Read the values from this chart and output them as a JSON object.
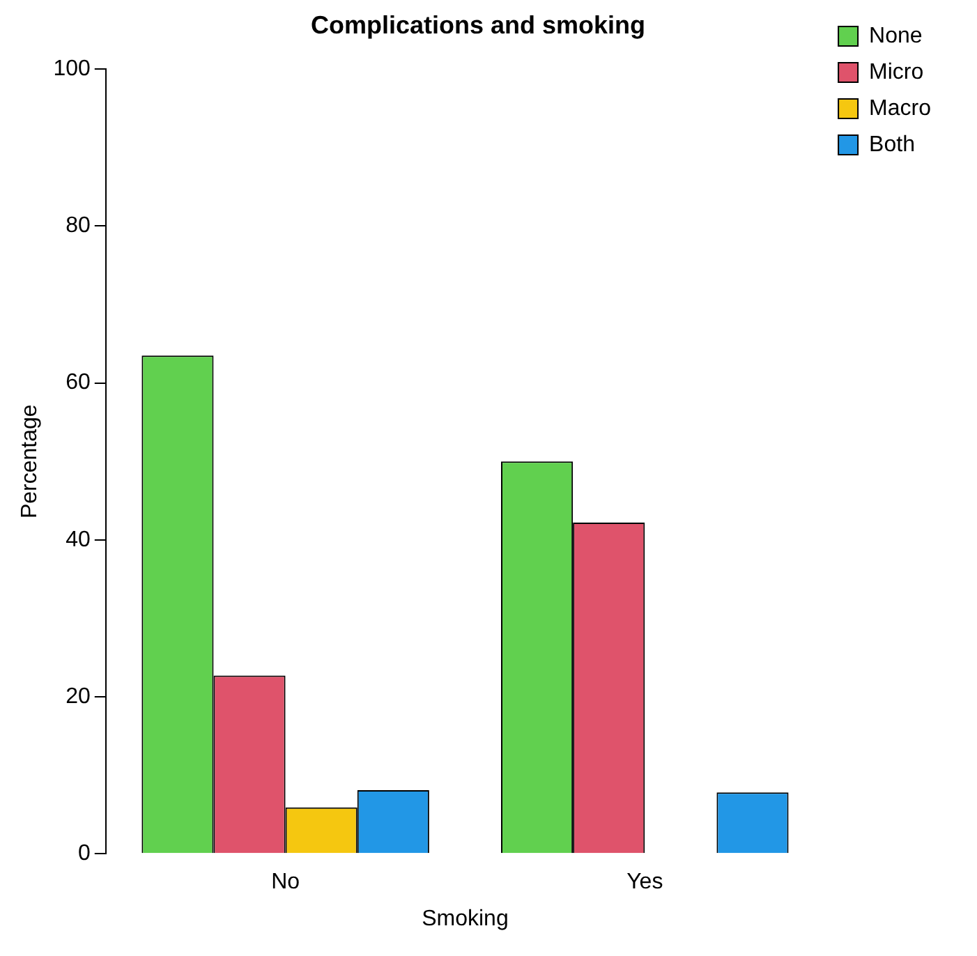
{
  "chart_data": {
    "type": "bar",
    "title": "Complications and smoking",
    "xlabel": "Smoking",
    "ylabel": "Percentage",
    "categories": [
      "No",
      "Yes"
    ],
    "series": [
      {
        "name": "None",
        "color": "#61d04f",
        "values": [
          63.5,
          50
        ]
      },
      {
        "name": "Micro",
        "color": "#df536b",
        "values": [
          22.7,
          42.2
        ]
      },
      {
        "name": "Macro",
        "color": "#f5c710",
        "values": [
          5.9,
          0
        ]
      },
      {
        "name": "Both",
        "color": "#2297e6",
        "values": [
          8.1,
          7.8
        ]
      }
    ],
    "ylim": [
      0,
      100
    ],
    "yticks": [
      0,
      20,
      40,
      60,
      80,
      100
    ],
    "grid": false,
    "legend": "top right"
  }
}
